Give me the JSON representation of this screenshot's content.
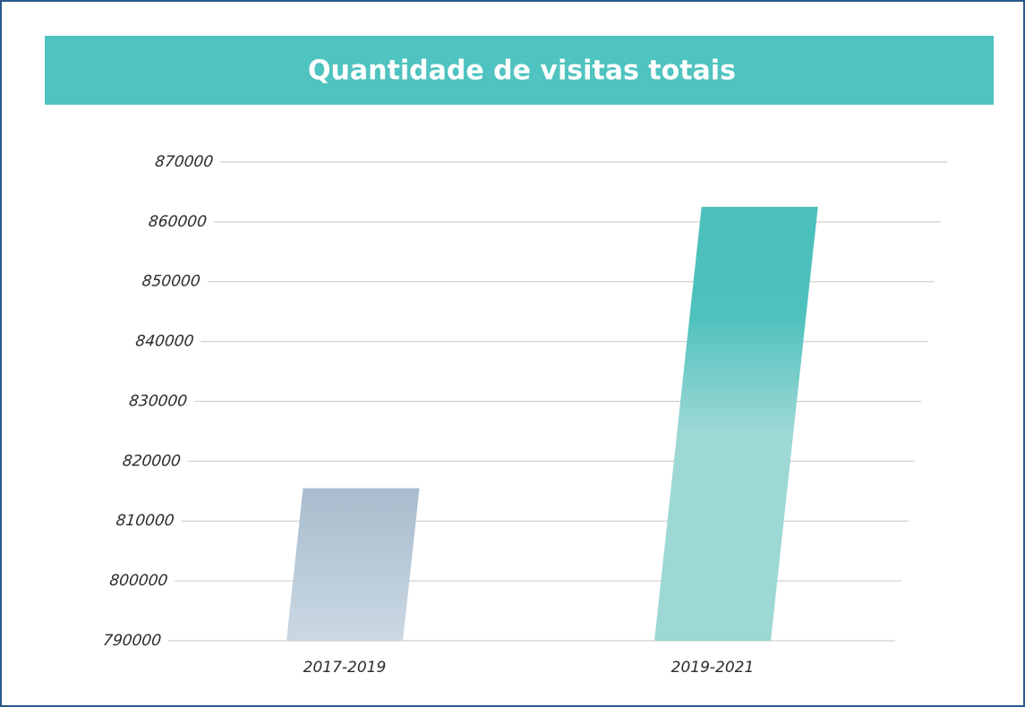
{
  "chart_data": {
    "type": "bar",
    "title": "Quantidade de visitas totais",
    "categories": [
      "2017-2019",
      "2019-2021"
    ],
    "values": [
      815500,
      862500
    ],
    "colors": [
      "#a8bccd",
      "#4bbfbb"
    ],
    "ylim": [
      790000,
      870000
    ],
    "yticks": [
      790000,
      800000,
      810000,
      820000,
      830000,
      840000,
      850000,
      860000,
      870000
    ],
    "grid": true
  }
}
